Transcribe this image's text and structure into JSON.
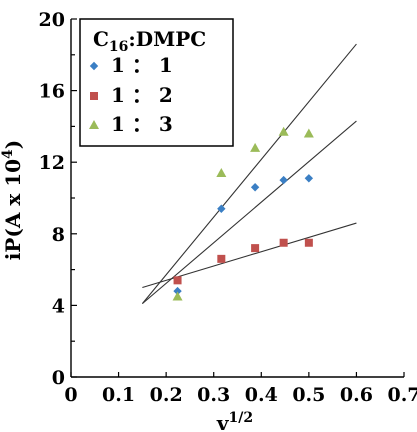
{
  "chart_data": {
    "type": "scatter",
    "xlabel": "v",
    "xlabel_sup": "1/2",
    "ylabel": "iP(A x 10",
    "ylabel_sup": "4",
    "ylabel_end": ")",
    "xlim": [
      0,
      0.7
    ],
    "ylim": [
      0,
      20
    ],
    "xticks": [
      "0",
      "0.1",
      "0.2",
      "0.3",
      "0.4",
      "0.5",
      "0.6",
      "0.7"
    ],
    "yticks": [
      "0",
      "4",
      "8",
      "12",
      "16",
      "20"
    ],
    "legend": {
      "title_prefix": "C",
      "title_sub": "16",
      "title_suffix": ":DMPC",
      "placement": "top-left"
    },
    "series": [
      {
        "name": "1 ： 1",
        "marker": "diamond",
        "color": "#3b7fc4",
        "x": [
          0.224,
          0.316,
          0.387,
          0.447,
          0.5
        ],
        "y": [
          4.8,
          9.4,
          10.6,
          11.0,
          11.1
        ],
        "fit": [
          [
            0.15,
            4.1
          ],
          [
            0.6,
            14.3
          ]
        ]
      },
      {
        "name": "1 ： 2",
        "marker": "square",
        "color": "#c0504d",
        "x": [
          0.224,
          0.316,
          0.387,
          0.447,
          0.5
        ],
        "y": [
          5.4,
          6.6,
          7.2,
          7.5,
          7.5
        ],
        "fit": [
          [
            0.15,
            5.0
          ],
          [
            0.6,
            8.6
          ]
        ]
      },
      {
        "name": "1 ： 3",
        "marker": "triangle",
        "color": "#9bbb59",
        "x": [
          0.224,
          0.316,
          0.387,
          0.447,
          0.5
        ],
        "y": [
          4.5,
          11.4,
          12.8,
          13.7,
          13.6
        ],
        "fit": [
          [
            0.15,
            4.1
          ],
          [
            0.6,
            18.6
          ]
        ]
      }
    ]
  }
}
